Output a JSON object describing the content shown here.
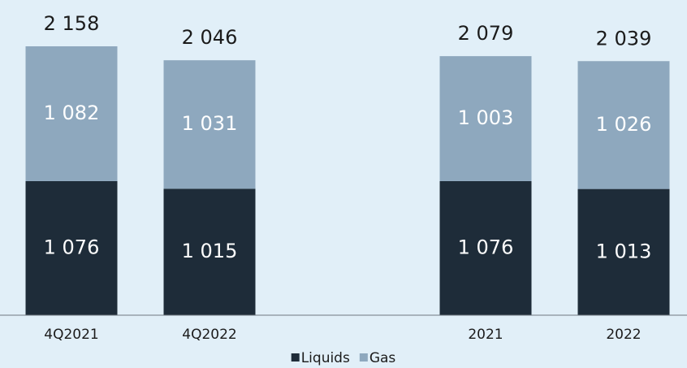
{
  "chart_data": {
    "type": "stacked_bar",
    "categories": [
      "4Q2021",
      "4Q2022",
      null,
      "2021",
      "2022"
    ],
    "series": [
      {
        "name": "Liquids",
        "color": "#1e2c39",
        "values": [
          1076,
          1015,
          null,
          1076,
          1013
        ],
        "value_labels": [
          "1 076",
          "1 015",
          null,
          "1 076",
          "1 013"
        ]
      },
      {
        "name": "Gas",
        "color": "#8ea8be",
        "values": [
          1082,
          1031,
          null,
          1003,
          1026
        ],
        "value_labels": [
          "1 082",
          "1 031",
          null,
          "1 003",
          "1 026"
        ]
      }
    ],
    "totals": [
      2158,
      2046,
      null,
      2079,
      2039
    ],
    "total_labels": [
      "2 158",
      "2 046",
      null,
      "2 079",
      "2 039"
    ],
    "legend": "bottom"
  }
}
